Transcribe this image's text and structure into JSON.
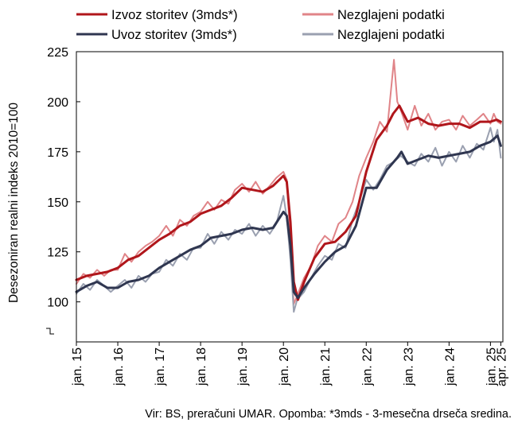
{
  "chart_data": {
    "type": "line",
    "ylabel": "Desezoniran realni indeks 2010=100",
    "ylim": [
      80,
      225
    ],
    "yticks": [
      100,
      125,
      150,
      175,
      200,
      225
    ],
    "axis_break": true,
    "xlim": [
      2015.0,
      2025.3
    ],
    "xtick_labels": [
      "jan. 15",
      "jan. 16",
      "jan. 17",
      "jan. 18",
      "jan. 19",
      "jan. 20",
      "jan. 21",
      "jan. 22",
      "jan. 23",
      "jan. 24",
      "jan. 25",
      "apr. 25"
    ],
    "xtick_values": [
      2015.0,
      2016.0,
      2017.0,
      2018.0,
      2019.0,
      2020.0,
      2021.0,
      2022.0,
      2023.0,
      2024.0,
      2025.0,
      2025.25
    ],
    "grid": false,
    "legend_position": "top",
    "series": [
      {
        "name": "Izvoz storitev (3mds*)",
        "color": "#b0161b",
        "width": 3,
        "points": [
          [
            2015.0,
            111
          ],
          [
            2015.25,
            113
          ],
          [
            2015.5,
            114
          ],
          [
            2015.75,
            115
          ],
          [
            2016.0,
            117
          ],
          [
            2016.25,
            121
          ],
          [
            2016.5,
            123
          ],
          [
            2016.75,
            127
          ],
          [
            2017.0,
            131
          ],
          [
            2017.25,
            134
          ],
          [
            2017.5,
            138
          ],
          [
            2017.75,
            140
          ],
          [
            2018.0,
            144
          ],
          [
            2018.25,
            146
          ],
          [
            2018.5,
            148
          ],
          [
            2018.75,
            152
          ],
          [
            2019.0,
            157
          ],
          [
            2019.25,
            156
          ],
          [
            2019.5,
            155
          ],
          [
            2019.75,
            158
          ],
          [
            2020.0,
            163
          ],
          [
            2020.08,
            160
          ],
          [
            2020.17,
            140
          ],
          [
            2020.25,
            110
          ],
          [
            2020.35,
            101
          ],
          [
            2020.5,
            110
          ],
          [
            2020.75,
            122
          ],
          [
            2021.0,
            129
          ],
          [
            2021.25,
            130
          ],
          [
            2021.5,
            135
          ],
          [
            2021.75,
            143
          ],
          [
            2022.0,
            165
          ],
          [
            2022.25,
            181
          ],
          [
            2022.5,
            188
          ],
          [
            2022.65,
            194
          ],
          [
            2022.8,
            198
          ],
          [
            2023.0,
            190
          ],
          [
            2023.25,
            192
          ],
          [
            2023.5,
            189
          ],
          [
            2023.75,
            188
          ],
          [
            2024.0,
            189
          ],
          [
            2024.25,
            189
          ],
          [
            2024.5,
            187
          ],
          [
            2024.75,
            190
          ],
          [
            2025.0,
            190
          ],
          [
            2025.15,
            191
          ],
          [
            2025.25,
            190
          ]
        ]
      },
      {
        "name": "Nezglajeni podatki",
        "color": "#e08488",
        "width": 2,
        "points": [
          [
            2015.0,
            109
          ],
          [
            2015.17,
            114
          ],
          [
            2015.33,
            112
          ],
          [
            2015.5,
            116
          ],
          [
            2015.67,
            113
          ],
          [
            2015.83,
            116
          ],
          [
            2016.0,
            116
          ],
          [
            2016.17,
            124
          ],
          [
            2016.33,
            120
          ],
          [
            2016.5,
            125
          ],
          [
            2016.67,
            128
          ],
          [
            2016.83,
            130
          ],
          [
            2017.0,
            133
          ],
          [
            2017.17,
            138
          ],
          [
            2017.33,
            133
          ],
          [
            2017.5,
            141
          ],
          [
            2017.67,
            138
          ],
          [
            2017.83,
            143
          ],
          [
            2018.0,
            145
          ],
          [
            2018.17,
            150
          ],
          [
            2018.33,
            146
          ],
          [
            2018.5,
            151
          ],
          [
            2018.67,
            149
          ],
          [
            2018.83,
            156
          ],
          [
            2019.0,
            159
          ],
          [
            2019.17,
            155
          ],
          [
            2019.33,
            160
          ],
          [
            2019.5,
            154
          ],
          [
            2019.67,
            158
          ],
          [
            2019.83,
            162
          ],
          [
            2020.0,
            165
          ],
          [
            2020.08,
            161
          ],
          [
            2020.17,
            130
          ],
          [
            2020.25,
            99
          ],
          [
            2020.33,
            103
          ],
          [
            2020.5,
            112
          ],
          [
            2020.67,
            118
          ],
          [
            2020.83,
            128
          ],
          [
            2021.0,
            133
          ],
          [
            2021.17,
            130
          ],
          [
            2021.33,
            139
          ],
          [
            2021.5,
            142
          ],
          [
            2021.67,
            150
          ],
          [
            2021.83,
            163
          ],
          [
            2022.0,
            172
          ],
          [
            2022.17,
            180
          ],
          [
            2022.33,
            190
          ],
          [
            2022.5,
            185
          ],
          [
            2022.67,
            221
          ],
          [
            2022.75,
            200
          ],
          [
            2022.83,
            196
          ],
          [
            2023.0,
            186
          ],
          [
            2023.17,
            198
          ],
          [
            2023.33,
            188
          ],
          [
            2023.5,
            194
          ],
          [
            2023.67,
            186
          ],
          [
            2023.83,
            190
          ],
          [
            2024.0,
            191
          ],
          [
            2024.17,
            186
          ],
          [
            2024.33,
            193
          ],
          [
            2024.5,
            188
          ],
          [
            2024.67,
            191
          ],
          [
            2024.83,
            194
          ],
          [
            2025.0,
            189
          ],
          [
            2025.08,
            194
          ],
          [
            2025.17,
            190
          ],
          [
            2025.25,
            189
          ]
        ]
      },
      {
        "name": "Uvoz storitev (3mds*)",
        "color": "#2f3650",
        "width": 3,
        "points": [
          [
            2015.0,
            105
          ],
          [
            2015.25,
            108
          ],
          [
            2015.5,
            110
          ],
          [
            2015.75,
            107
          ],
          [
            2016.0,
            107
          ],
          [
            2016.25,
            110
          ],
          [
            2016.5,
            111
          ],
          [
            2016.75,
            113
          ],
          [
            2017.0,
            117
          ],
          [
            2017.25,
            120
          ],
          [
            2017.5,
            123
          ],
          [
            2017.75,
            126
          ],
          [
            2018.0,
            128
          ],
          [
            2018.25,
            132
          ],
          [
            2018.5,
            133
          ],
          [
            2018.75,
            134
          ],
          [
            2019.0,
            136
          ],
          [
            2019.25,
            137
          ],
          [
            2019.5,
            136
          ],
          [
            2019.75,
            137
          ],
          [
            2020.0,
            145
          ],
          [
            2020.08,
            143
          ],
          [
            2020.17,
            128
          ],
          [
            2020.25,
            105
          ],
          [
            2020.35,
            102
          ],
          [
            2020.5,
            107
          ],
          [
            2020.75,
            114
          ],
          [
            2021.0,
            120
          ],
          [
            2021.25,
            125
          ],
          [
            2021.5,
            128
          ],
          [
            2021.75,
            138
          ],
          [
            2022.0,
            157
          ],
          [
            2022.25,
            157
          ],
          [
            2022.5,
            166
          ],
          [
            2022.75,
            172
          ],
          [
            2022.85,
            175
          ],
          [
            2023.0,
            169
          ],
          [
            2023.25,
            171
          ],
          [
            2023.5,
            173
          ],
          [
            2023.75,
            172
          ],
          [
            2024.0,
            173
          ],
          [
            2024.25,
            174
          ],
          [
            2024.5,
            175
          ],
          [
            2024.75,
            178
          ],
          [
            2025.0,
            180
          ],
          [
            2025.17,
            183
          ],
          [
            2025.25,
            178
          ]
        ]
      },
      {
        "name": "Nezglajeni podatki",
        "color": "#9aa0b0",
        "width": 2,
        "points": [
          [
            2015.0,
            104
          ],
          [
            2015.17,
            109
          ],
          [
            2015.33,
            106
          ],
          [
            2015.5,
            111
          ],
          [
            2015.67,
            108
          ],
          [
            2015.83,
            105
          ],
          [
            2016.0,
            108
          ],
          [
            2016.17,
            111
          ],
          [
            2016.33,
            107
          ],
          [
            2016.5,
            113
          ],
          [
            2016.67,
            110
          ],
          [
            2016.83,
            114
          ],
          [
            2017.0,
            115
          ],
          [
            2017.17,
            121
          ],
          [
            2017.33,
            118
          ],
          [
            2017.5,
            124
          ],
          [
            2017.67,
            121
          ],
          [
            2017.83,
            127
          ],
          [
            2018.0,
            127
          ],
          [
            2018.17,
            134
          ],
          [
            2018.33,
            129
          ],
          [
            2018.5,
            135
          ],
          [
            2018.67,
            131
          ],
          [
            2018.83,
            136
          ],
          [
            2019.0,
            134
          ],
          [
            2019.17,
            139
          ],
          [
            2019.33,
            133
          ],
          [
            2019.5,
            138
          ],
          [
            2019.67,
            134
          ],
          [
            2019.83,
            139
          ],
          [
            2020.0,
            153
          ],
          [
            2020.08,
            142
          ],
          [
            2020.17,
            121
          ],
          [
            2020.25,
            95
          ],
          [
            2020.33,
            101
          ],
          [
            2020.5,
            105
          ],
          [
            2020.67,
            112
          ],
          [
            2020.83,
            118
          ],
          [
            2021.0,
            123
          ],
          [
            2021.17,
            121
          ],
          [
            2021.33,
            129
          ],
          [
            2021.5,
            127
          ],
          [
            2021.67,
            141
          ],
          [
            2021.83,
            150
          ],
          [
            2022.0,
            161
          ],
          [
            2022.17,
            156
          ],
          [
            2022.33,
            161
          ],
          [
            2022.5,
            168
          ],
          [
            2022.67,
            170
          ],
          [
            2022.83,
            173
          ],
          [
            2023.0,
            170
          ],
          [
            2023.17,
            168
          ],
          [
            2023.33,
            174
          ],
          [
            2023.5,
            170
          ],
          [
            2023.67,
            177
          ],
          [
            2023.83,
            168
          ],
          [
            2024.0,
            175
          ],
          [
            2024.17,
            170
          ],
          [
            2024.33,
            178
          ],
          [
            2024.5,
            172
          ],
          [
            2024.67,
            179
          ],
          [
            2024.83,
            176
          ],
          [
            2025.0,
            187
          ],
          [
            2025.08,
            180
          ],
          [
            2025.17,
            186
          ],
          [
            2025.25,
            172
          ]
        ]
      }
    ]
  },
  "source_note": "Vir: BS, preračuni UMAR. Opomba: *3mds - 3-mesečna drseča sredina."
}
